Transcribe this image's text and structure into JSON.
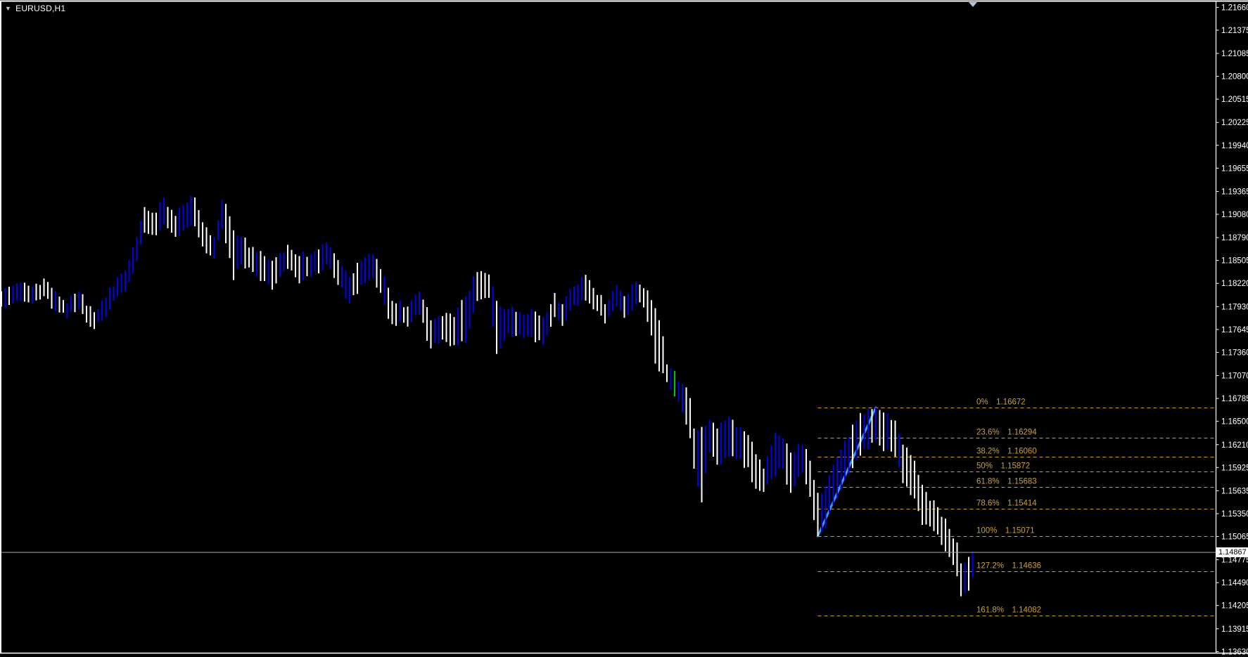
{
  "window": {
    "symbol_label": "EURUSD,H1",
    "dropdown_icon": "symbol-dropdown-arrow"
  },
  "colors": {
    "background": "#000000",
    "frame": "#FFFFFF",
    "bar_up": "#0202E8",
    "bar_down": "#FFFFFF",
    "bar_special": "#00C800",
    "trendline": "#3B9BE8",
    "fibonacci": "#CDA028",
    "price_line": "#9FAAB6",
    "badge_bg": "#FFFFFF",
    "badge_text": "#000000",
    "axis_text": "#FFFFFF",
    "shift_marker": "#AFC6DC"
  },
  "axis": {
    "current_price": "1.14867",
    "ticks": [
      "1.21660",
      "1.21375",
      "1.21085",
      "1.20800",
      "1.20515",
      "1.20225",
      "1.19940",
      "1.19655",
      "1.19365",
      "1.19080",
      "1.18790",
      "1.18505",
      "1.18220",
      "1.17930",
      "1.17645",
      "1.17360",
      "1.17070",
      "1.16785",
      "1.16500",
      "1.16210",
      "1.15925",
      "1.15635",
      "1.15350",
      "1.15065",
      "1.14775",
      "1.14490",
      "1.14205",
      "1.13915",
      "1.13630"
    ]
  },
  "chart_data": {
    "type": "bar",
    "subtype": "ohlc-bars",
    "symbol": "EURUSD",
    "timeframe": "H1",
    "title": "EURUSD,H1",
    "ylabel": "price",
    "ylim": [
      1.1363,
      1.2166
    ],
    "grid": "off",
    "last_price": 1.14867,
    "fibonacci": {
      "levels": [
        {
          "pct": "0%",
          "price": 1.16672
        },
        {
          "pct": "23.6%",
          "price": 1.16294
        },
        {
          "pct": "38.2%",
          "price": 1.1606
        },
        {
          "pct": "50%",
          "price": 1.15872
        },
        {
          "pct": "61.8%",
          "price": 1.15683
        },
        {
          "pct": "78.6%",
          "price": 1.15414
        },
        {
          "pct": "100%",
          "price": 1.15071
        },
        {
          "pct": "127.2%",
          "price": 1.14636
        },
        {
          "pct": "161.8%",
          "price": 1.14082
        }
      ],
      "price_text": [
        "1.16672",
        "1.16294",
        "1.16060",
        "1.15872",
        "1.15683",
        "1.15414",
        "1.15071",
        "1.14636",
        "1.14082"
      ],
      "trend_from_bar": 211,
      "trend_from_price": 1.15071,
      "trend_to_bar": 226,
      "trend_to_price": 1.16672
    },
    "bars": {
      "count": 252,
      "note": "digitized high/low waypoints [bar_index, high, low]; bars between waypoints interpolated",
      "special_bar_index": 174,
      "waypoints": [
        [
          0,
          1.1812,
          1.1793
        ],
        [
          4,
          1.1822,
          1.18
        ],
        [
          8,
          1.1818,
          1.1797
        ],
        [
          11,
          1.1828,
          1.1806
        ],
        [
          14,
          1.1812,
          1.1787
        ],
        [
          17,
          1.1797,
          1.1778
        ],
        [
          20,
          1.1812,
          1.179
        ],
        [
          24,
          1.1786,
          1.1765
        ],
        [
          27,
          1.1804,
          1.178
        ],
        [
          30,
          1.183,
          1.1806
        ],
        [
          32,
          1.1838,
          1.1812
        ],
        [
          35,
          1.188,
          1.185
        ],
        [
          37,
          1.1917,
          1.1885
        ],
        [
          40,
          1.191,
          1.1882
        ],
        [
          42,
          1.1929,
          1.1896
        ],
        [
          45,
          1.1906,
          1.188
        ],
        [
          47,
          1.192,
          1.1888
        ],
        [
          50,
          1.1929,
          1.1893
        ],
        [
          52,
          1.1898,
          1.1868
        ],
        [
          55,
          1.188,
          1.1853
        ],
        [
          57,
          1.1926,
          1.189
        ],
        [
          58,
          1.1921,
          1.1872
        ],
        [
          60,
          1.1888,
          1.1826
        ],
        [
          62,
          1.188,
          1.1846
        ],
        [
          66,
          1.1861,
          1.1831
        ],
        [
          70,
          1.185,
          1.1814
        ],
        [
          74,
          1.187,
          1.184
        ],
        [
          77,
          1.1856,
          1.1822
        ],
        [
          80,
          1.1858,
          1.183
        ],
        [
          84,
          1.1873,
          1.1846
        ],
        [
          87,
          1.1851,
          1.182
        ],
        [
          90,
          1.183,
          1.1797
        ],
        [
          93,
          1.185,
          1.182
        ],
        [
          96,
          1.1858,
          1.1828
        ],
        [
          99,
          1.1831,
          1.1795
        ],
        [
          101,
          1.18,
          1.1771
        ],
        [
          105,
          1.1793,
          1.1768
        ],
        [
          108,
          1.1812,
          1.1783
        ],
        [
          111,
          1.1776,
          1.1741
        ],
        [
          114,
          1.1781,
          1.1752
        ],
        [
          117,
          1.178,
          1.1745
        ],
        [
          120,
          1.1806,
          1.1748
        ],
        [
          123,
          1.1836,
          1.18
        ],
        [
          126,
          1.1833,
          1.1804
        ],
        [
          128,
          1.18,
          1.1734
        ],
        [
          131,
          1.179,
          1.176
        ],
        [
          134,
          1.1786,
          1.1758
        ],
        [
          137,
          1.179,
          1.1755
        ],
        [
          140,
          1.178,
          1.1745
        ],
        [
          143,
          1.181,
          1.178
        ],
        [
          145,
          1.1796,
          1.1769
        ],
        [
          147,
          1.1815,
          1.1788
        ],
        [
          150,
          1.183,
          1.1801
        ],
        [
          152,
          1.1826,
          1.1797
        ],
        [
          156,
          1.1796,
          1.1772
        ],
        [
          159,
          1.182,
          1.1793
        ],
        [
          161,
          1.1806,
          1.1779
        ],
        [
          164,
          1.1824,
          1.1796
        ],
        [
          166,
          1.1816,
          1.1792
        ],
        [
          168,
          1.1801,
          1.1757
        ],
        [
          169,
          1.1791,
          1.1722
        ],
        [
          171,
          1.1756,
          1.171
        ],
        [
          172,
          1.1721,
          1.1699
        ],
        [
          174,
          1.1713,
          1.1681
        ],
        [
          176,
          1.1696,
          1.1661
        ],
        [
          178,
          1.1679,
          1.1629
        ],
        [
          179,
          1.1641,
          1.1591
        ],
        [
          181,
          1.1643,
          1.1549
        ],
        [
          183,
          1.1652,
          1.1611
        ],
        [
          185,
          1.1641,
          1.1596
        ],
        [
          188,
          1.1656,
          1.1606
        ],
        [
          190,
          1.1643,
          1.1603
        ],
        [
          193,
          1.1633,
          1.1593
        ],
        [
          195,
          1.1609,
          1.1566
        ],
        [
          197,
          1.1591,
          1.1562
        ],
        [
          200,
          1.1636,
          1.1581
        ],
        [
          202,
          1.1629,
          1.1591
        ],
        [
          204,
          1.1611,
          1.1561
        ],
        [
          207,
          1.1621,
          1.1586
        ],
        [
          209,
          1.1601,
          1.1556
        ],
        [
          211,
          1.1561,
          1.15071
        ],
        [
          213,
          1.1569,
          1.1516
        ],
        [
          215,
          1.1596,
          1.1546
        ],
        [
          218,
          1.1626,
          1.1576
        ],
        [
          221,
          1.1651,
          1.1601
        ],
        [
          223,
          1.1659,
          1.1616
        ],
        [
          226,
          1.16672,
          1.1626
        ],
        [
          228,
          1.1661,
          1.1613
        ],
        [
          231,
          1.1651,
          1.1606
        ],
        [
          233,
          1.1621,
          1.1573
        ],
        [
          236,
          1.1601,
          1.1554
        ],
        [
          238,
          1.1571,
          1.1521
        ],
        [
          240,
          1.1551,
          1.1519
        ],
        [
          242,
          1.1543,
          1.1509
        ],
        [
          243,
          1.1531,
          1.1496
        ],
        [
          245,
          1.1516,
          1.1481
        ],
        [
          247,
          1.1499,
          1.1457
        ],
        [
          248,
          1.1473,
          1.1432
        ],
        [
          250,
          1.1481,
          1.1439
        ],
        [
          251,
          1.14867,
          1.1456
        ]
      ]
    }
  }
}
